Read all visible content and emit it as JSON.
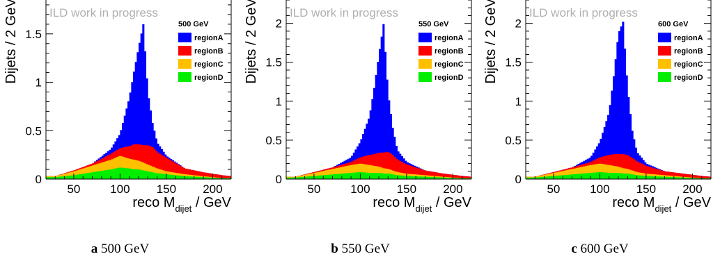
{
  "figure": {
    "captions": [
      {
        "letter": "a",
        "text": "500 GeV"
      },
      {
        "letter": "b",
        "text": "550 GeV"
      },
      {
        "letter": "c",
        "text": "600 GeV"
      }
    ]
  },
  "chart_data": [
    {
      "type": "area",
      "stacked": true,
      "title": "500 GeV",
      "watermark": "ILD work in progress",
      "ylabel": "Dijets / 2 GeV",
      "xlabel": "reco M",
      "xlabel_sub": "dijet",
      "xlabel_unit": " / GeV",
      "xlim": [
        20,
        220
      ],
      "ylim": [
        0,
        1.85
      ],
      "xticks": [
        50,
        100,
        150,
        200
      ],
      "yticks": [
        0,
        0.5,
        1,
        1.5
      ],
      "ytick_labels": [
        "0",
        "0.5",
        "1",
        "1.5"
      ],
      "legend_position": "top-right",
      "x": [
        30,
        50,
        70,
        90,
        100,
        110,
        115,
        120,
        125,
        130,
        135,
        140,
        150,
        170,
        190,
        210,
        220
      ],
      "series": [
        {
          "name": "regionD",
          "color": "#00ee00",
          "values": [
            0.02,
            0.04,
            0.07,
            0.1,
            0.12,
            0.11,
            0.1,
            0.1,
            0.09,
            0.08,
            0.07,
            0.06,
            0.05,
            0.03,
            0.02,
            0.01,
            0.01
          ]
        },
        {
          "name": "regionC",
          "color": "#ffc000",
          "values": [
            0.01,
            0.04,
            0.07,
            0.1,
            0.12,
            0.1,
            0.1,
            0.09,
            0.08,
            0.07,
            0.06,
            0.05,
            0.03,
            0.02,
            0.01,
            0.0,
            0.0
          ]
        },
        {
          "name": "regionB",
          "color": "#ff0000",
          "values": [
            0.0,
            0.01,
            0.02,
            0.06,
            0.08,
            0.13,
            0.16,
            0.17,
            0.18,
            0.2,
            0.2,
            0.17,
            0.14,
            0.06,
            0.04,
            0.03,
            0.02
          ]
        },
        {
          "name": "regionA",
          "color": "#0000ff",
          "values": [
            0.0,
            0.0,
            0.0,
            0.05,
            0.15,
            0.5,
            0.75,
            1.0,
            1.25,
            0.55,
            0.25,
            0.1,
            0.02,
            0.0,
            0.0,
            0.0,
            0.0
          ]
        }
      ]
    },
    {
      "type": "area",
      "stacked": true,
      "title": "550 GeV",
      "watermark": "ILD work in progress",
      "ylabel": "Dijets / 2 GeV",
      "xlabel": "reco M",
      "xlabel_sub": "dijet",
      "xlabel_unit": " / GeV",
      "xlim": [
        20,
        220
      ],
      "ylim": [
        0,
        2.3
      ],
      "xticks": [
        50,
        100,
        150,
        200
      ],
      "yticks": [
        0,
        0.5,
        1,
        1.5,
        2
      ],
      "ytick_labels": [
        "0",
        "0.5",
        "1",
        "1.5",
        "2"
      ],
      "legend_position": "top-right",
      "x": [
        30,
        50,
        70,
        90,
        100,
        110,
        115,
        120,
        125,
        130,
        135,
        140,
        150,
        170,
        190,
        210,
        220
      ],
      "series": [
        {
          "name": "regionD",
          "color": "#00ee00",
          "values": [
            0.02,
            0.04,
            0.06,
            0.08,
            0.09,
            0.08,
            0.08,
            0.08,
            0.07,
            0.07,
            0.06,
            0.05,
            0.04,
            0.03,
            0.02,
            0.01,
            0.01
          ]
        },
        {
          "name": "regionC",
          "color": "#ffc000",
          "values": [
            0.01,
            0.04,
            0.07,
            0.1,
            0.11,
            0.1,
            0.09,
            0.08,
            0.07,
            0.06,
            0.05,
            0.04,
            0.03,
            0.02,
            0.01,
            0.0,
            0.0
          ]
        },
        {
          "name": "regionB",
          "color": "#ff0000",
          "values": [
            0.0,
            0.01,
            0.02,
            0.04,
            0.08,
            0.13,
            0.15,
            0.18,
            0.2,
            0.22,
            0.2,
            0.16,
            0.12,
            0.06,
            0.04,
            0.03,
            0.02
          ]
        },
        {
          "name": "regionA",
          "color": "#0000ff",
          "values": [
            0.0,
            0.0,
            0.0,
            0.06,
            0.2,
            0.5,
            0.85,
            1.25,
            1.65,
            0.75,
            0.35,
            0.12,
            0.03,
            0.0,
            0.0,
            0.0,
            0.0
          ]
        }
      ]
    },
    {
      "type": "area",
      "stacked": true,
      "title": "600 GeV",
      "watermark": "ILD work in progress",
      "ylabel": "Dijets / 2 GeV",
      "xlabel": "reco M",
      "xlabel_sub": "dijet",
      "xlabel_unit": " / GeV",
      "xlim": [
        20,
        220
      ],
      "ylim": [
        0,
        2.3
      ],
      "xticks": [
        50,
        100,
        150,
        200
      ],
      "yticks": [
        0,
        0.5,
        1,
        1.5,
        2
      ],
      "ytick_labels": [
        "0",
        "0.5",
        "1",
        "1.5",
        "2"
      ],
      "legend_position": "top-right",
      "x": [
        30,
        50,
        70,
        90,
        100,
        110,
        115,
        120,
        125,
        130,
        135,
        140,
        150,
        170,
        190,
        210,
        220
      ],
      "series": [
        {
          "name": "regionD",
          "color": "#00ee00",
          "values": [
            0.02,
            0.04,
            0.06,
            0.08,
            0.09,
            0.08,
            0.08,
            0.08,
            0.07,
            0.07,
            0.06,
            0.05,
            0.04,
            0.03,
            0.02,
            0.01,
            0.01
          ]
        },
        {
          "name": "regionC",
          "color": "#ffc000",
          "values": [
            0.01,
            0.04,
            0.07,
            0.1,
            0.11,
            0.1,
            0.09,
            0.08,
            0.07,
            0.06,
            0.05,
            0.04,
            0.03,
            0.02,
            0.01,
            0.0,
            0.0
          ]
        },
        {
          "name": "regionB",
          "color": "#ff0000",
          "values": [
            0.0,
            0.01,
            0.02,
            0.04,
            0.08,
            0.13,
            0.15,
            0.16,
            0.18,
            0.18,
            0.16,
            0.14,
            0.1,
            0.05,
            0.04,
            0.03,
            0.02
          ]
        },
        {
          "name": "regionA",
          "color": "#0000ff",
          "values": [
            0.0,
            0.0,
            0.0,
            0.06,
            0.2,
            0.55,
            1.0,
            1.55,
            1.7,
            0.85,
            0.35,
            0.12,
            0.03,
            0.0,
            0.0,
            0.0,
            0.0
          ]
        }
      ]
    }
  ]
}
